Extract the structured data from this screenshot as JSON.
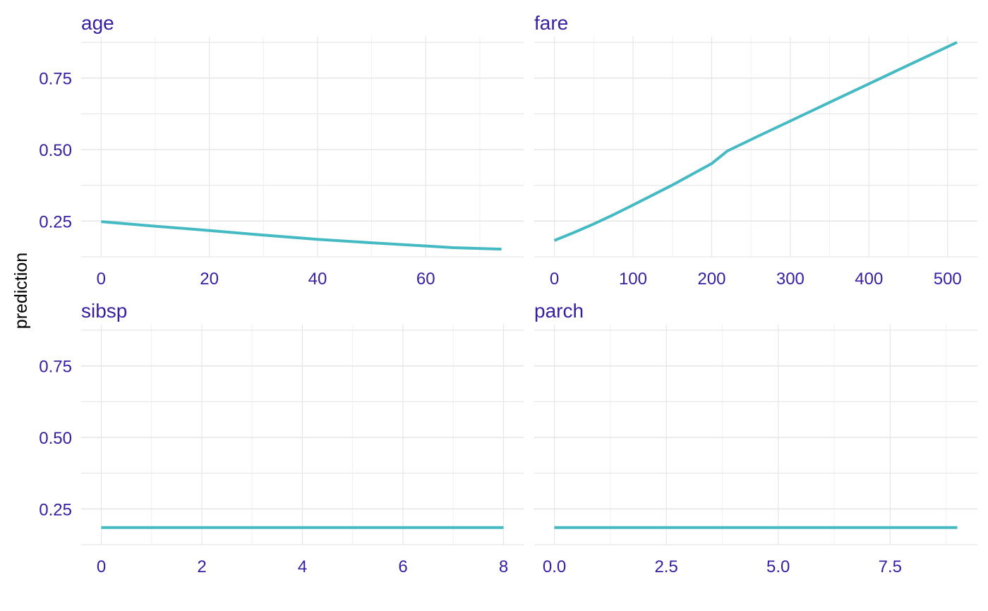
{
  "figure": {
    "ylabel": "prediction",
    "text_color": "#371ea3",
    "line_color": "#46bac2",
    "grid_major_color": "#e6e6e6",
    "grid_minor_color": "#f0f0f0",
    "y_ticks": [
      0.25,
      0.5,
      0.75
    ],
    "y_tick_labels": [
      "0.25",
      "0.50",
      "0.75"
    ]
  },
  "chart_data": [
    {
      "type": "line",
      "title": "age",
      "xlim": [
        -3.7,
        78.1
      ],
      "ylim": [
        0.125,
        0.875
      ],
      "x_ticks": [
        0,
        20,
        40,
        60
      ],
      "x_tick_labels": [
        "0",
        "20",
        "40",
        "60"
      ],
      "x": [
        0,
        10,
        20,
        30,
        40,
        50,
        60,
        65,
        74
      ],
      "y": [
        0.248,
        0.232,
        0.217,
        0.201,
        0.186,
        0.174,
        0.163,
        0.157,
        0.152
      ]
    },
    {
      "type": "line",
      "title": "fare",
      "xlim": [
        -25.6,
        537.9
      ],
      "ylim": [
        0.125,
        0.875
      ],
      "x_ticks": [
        0,
        100,
        200,
        300,
        400,
        500
      ],
      "x_tick_labels": [
        "0",
        "100",
        "200",
        "300",
        "400",
        "500"
      ],
      "x": [
        0,
        25,
        50,
        75,
        100,
        150,
        200,
        220,
        260,
        300,
        350,
        400,
        450,
        512
      ],
      "y": [
        0.182,
        0.21,
        0.24,
        0.272,
        0.306,
        0.376,
        0.451,
        0.495,
        0.548,
        0.6,
        0.665,
        0.73,
        0.795,
        0.875
      ]
    },
    {
      "type": "line",
      "title": "sibsp",
      "xlim": [
        -0.4,
        8.4
      ],
      "ylim": [
        0.125,
        0.875
      ],
      "x_ticks": [
        0,
        2,
        4,
        6,
        8
      ],
      "x_tick_labels": [
        "0",
        "2",
        "4",
        "6",
        "8"
      ],
      "x": [
        0,
        8
      ],
      "y": [
        0.185,
        0.185
      ]
    },
    {
      "type": "line",
      "title": "parch",
      "xlim": [
        -0.45,
        9.45
      ],
      "ylim": [
        0.125,
        0.875
      ],
      "x_ticks": [
        0,
        2.5,
        5,
        7.5
      ],
      "x_tick_labels": [
        "0.0",
        "2.5",
        "5.0",
        "7.5"
      ],
      "x": [
        0,
        9
      ],
      "y": [
        0.185,
        0.185
      ]
    }
  ]
}
